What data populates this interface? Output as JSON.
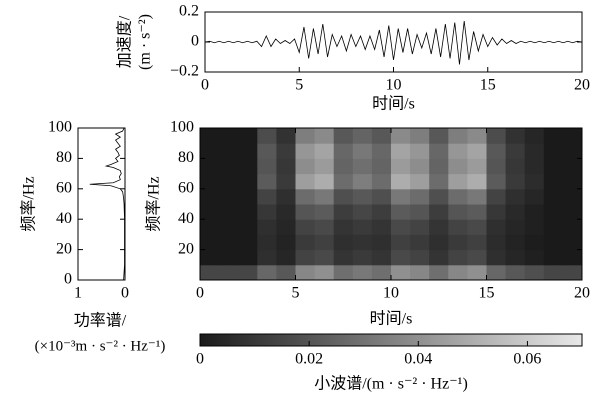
{
  "chart_data": [
    {
      "type": "line",
      "ylabel": [
        "加速度/",
        "(m · s⁻²)"
      ],
      "xlabel": "时间/s",
      "color": "#000000",
      "x": [
        0,
        0.25,
        0.5,
        0.75,
        1,
        1.25,
        1.5,
        1.75,
        2,
        2.25,
        2.5,
        2.75,
        3,
        3.25,
        3.5,
        3.75,
        4,
        4.25,
        4.5,
        4.75,
        5,
        5.25,
        5.5,
        5.75,
        6,
        6.25,
        6.5,
        6.75,
        7,
        7.25,
        7.5,
        7.75,
        8,
        8.25,
        8.5,
        8.75,
        9,
        9.25,
        9.5,
        9.75,
        10,
        10.25,
        10.5,
        10.75,
        11,
        11.25,
        11.5,
        11.75,
        12,
        12.25,
        12.5,
        12.75,
        13,
        13.25,
        13.5,
        13.75,
        14,
        14.25,
        14.5,
        14.75,
        15,
        15.25,
        15.5,
        15.75,
        16,
        16.25,
        16.5,
        16.75,
        17,
        17.25,
        17.5,
        17.75,
        18,
        18.25,
        18.5,
        18.75,
        19,
        19.25,
        19.5,
        19.75,
        20
      ],
      "values": [
        0,
        0.005,
        -0.005,
        0.005,
        -0.005,
        0.005,
        -0.005,
        0.005,
        -0.005,
        0.005,
        -0.005,
        0.005,
        -0.03,
        0.04,
        -0.03,
        0.02,
        -0.01,
        0.01,
        -0.01,
        0.02,
        -0.07,
        0.1,
        -0.11,
        0.09,
        -0.08,
        0.12,
        -0.1,
        0.05,
        -0.03,
        0.04,
        -0.06,
        0.05,
        -0.03,
        0.04,
        -0.05,
        0.04,
        -0.05,
        0.08,
        -0.1,
        0.11,
        -0.12,
        0.09,
        -0.07,
        0.09,
        -0.08,
        0.05,
        -0.04,
        0.06,
        -0.08,
        0.09,
        -0.1,
        0.12,
        -0.11,
        0.13,
        -0.15,
        0.14,
        -0.12,
        0.07,
        -0.06,
        0.05,
        -0.03,
        0.03,
        -0.02,
        0.02,
        -0.01,
        0.01,
        -0.01,
        0.005,
        -0.005,
        0.005,
        -0.005,
        0.005,
        -0.005,
        0.005,
        -0.005,
        0.005,
        -0.005,
        0.005,
        -0.005,
        0.005,
        0
      ],
      "xlim": [
        0,
        20
      ],
      "xticks": [
        0,
        5,
        10,
        15,
        20
      ],
      "ylim": [
        -0.2,
        0.2
      ],
      "yticks": [
        {
          "value": -0.2,
          "label": "−0.2"
        },
        0,
        0.2
      ]
    },
    {
      "type": "hline",
      "ylabel": "频率/Hz",
      "xlabel": [
        "功率谱/",
        "(×10⁻³m · s⁻² · Hz⁻¹)"
      ],
      "color": "#000000",
      "y": [
        0,
        10,
        20,
        30,
        40,
        50,
        54,
        58,
        60,
        62,
        63,
        64,
        66,
        68,
        70,
        72,
        74,
        75,
        76,
        78,
        80,
        82,
        84,
        86,
        88,
        90,
        92,
        94,
        96,
        98,
        100
      ],
      "values": [
        0.03,
        0.01,
        0.01,
        0.01,
        0.01,
        0.02,
        0.03,
        0.05,
        0.1,
        0.3,
        0.75,
        0.25,
        0.1,
        0.12,
        0.08,
        0.1,
        0.25,
        0.4,
        0.3,
        0.15,
        0.2,
        0.12,
        0.15,
        0.2,
        0.1,
        0.15,
        0.2,
        0.1,
        0.2,
        0.05,
        0.02
      ],
      "xlim": [
        1,
        0
      ],
      "xticks": [
        1,
        0
      ],
      "ylim": [
        0,
        100
      ],
      "yticks": [
        0,
        20,
        40,
        60,
        80,
        100
      ]
    },
    {
      "type": "heatmap",
      "ylabel": "频率/Hz",
      "xlabel": "时间/s",
      "x": [
        0.5,
        1.5,
        2.5,
        3.5,
        4.5,
        5.5,
        6.5,
        7.5,
        8.5,
        9.5,
        10.5,
        11.5,
        12.5,
        13.5,
        14.5,
        15.5,
        16.5,
        17.5,
        18.5,
        19.5
      ],
      "y": [
        5,
        15,
        25,
        35,
        45,
        55,
        65,
        75,
        85,
        95
      ],
      "values": [
        [
          0.015,
          0.015,
          0.015,
          0.026,
          0.021,
          0.037,
          0.04,
          0.029,
          0.032,
          0.029,
          0.04,
          0.037,
          0.029,
          0.037,
          0.04,
          0.026,
          0.021,
          0.018,
          0.015,
          0.015
        ],
        [
          0,
          0,
          0,
          0.007,
          0.004,
          0.014,
          0.016,
          0.009,
          0.011,
          0.009,
          0.016,
          0.014,
          0.009,
          0.014,
          0.016,
          0.007,
          0.004,
          0.002,
          0,
          0
        ],
        [
          0,
          0,
          0,
          0.006,
          0.003,
          0.011,
          0.013,
          0.007,
          0.008,
          0.007,
          0.013,
          0.011,
          0.007,
          0.011,
          0.013,
          0.006,
          0.003,
          0.001,
          0,
          0
        ],
        [
          0,
          0,
          0,
          0.007,
          0.004,
          0.014,
          0.016,
          0.009,
          0.011,
          0.009,
          0.016,
          0.014,
          0.009,
          0.014,
          0.016,
          0.007,
          0.004,
          0.002,
          0,
          0
        ],
        [
          0,
          0,
          0,
          0.01,
          0.005,
          0.02,
          0.022,
          0.012,
          0.015,
          0.012,
          0.022,
          0.02,
          0.012,
          0.02,
          0.022,
          0.01,
          0.005,
          0.002,
          0,
          0
        ],
        [
          0,
          0,
          0,
          0.014,
          0.007,
          0.028,
          0.032,
          0.018,
          0.021,
          0.018,
          0.032,
          0.028,
          0.018,
          0.028,
          0.032,
          0.014,
          0.007,
          0.004,
          0,
          0
        ],
        [
          0,
          0,
          0,
          0.022,
          0.011,
          0.045,
          0.05,
          0.028,
          0.034,
          0.028,
          0.05,
          0.045,
          0.028,
          0.045,
          0.05,
          0.022,
          0.011,
          0.006,
          0,
          0
        ],
        [
          0,
          0,
          0,
          0.02,
          0.01,
          0.039,
          0.044,
          0.025,
          0.029,
          0.025,
          0.044,
          0.039,
          0.025,
          0.039,
          0.044,
          0.02,
          0.01,
          0.005,
          0,
          0
        ],
        [
          0,
          0,
          0,
          0.021,
          0.011,
          0.042,
          0.047,
          0.026,
          0.032,
          0.026,
          0.047,
          0.042,
          0.026,
          0.042,
          0.047,
          0.021,
          0.011,
          0.005,
          0,
          0
        ],
        [
          0,
          0,
          0,
          0.017,
          0.008,
          0.034,
          0.038,
          0.021,
          0.025,
          0.021,
          0.038,
          0.034,
          0.021,
          0.034,
          0.038,
          0.017,
          0.008,
          0.004,
          0,
          0
        ]
      ],
      "xlim": [
        0,
        20
      ],
      "xticks": [
        0,
        5,
        10,
        15,
        20
      ],
      "ylim": [
        0,
        100
      ],
      "yticks": [
        20,
        40,
        60,
        80,
        100
      ],
      "clim": [
        0,
        0.07
      ],
      "colors": [
        "#1a1a1a",
        "#e8e8e8"
      ]
    },
    {
      "type": "colorbar",
      "xlabel": "小波谱/(m · s⁻² · Hz⁻¹)",
      "xlim": [
        0,
        0.07
      ],
      "xticks": [
        0,
        0.02,
        0.04,
        0.06
      ],
      "colors": [
        "#1a1a1a",
        "#e8e8e8"
      ]
    }
  ]
}
